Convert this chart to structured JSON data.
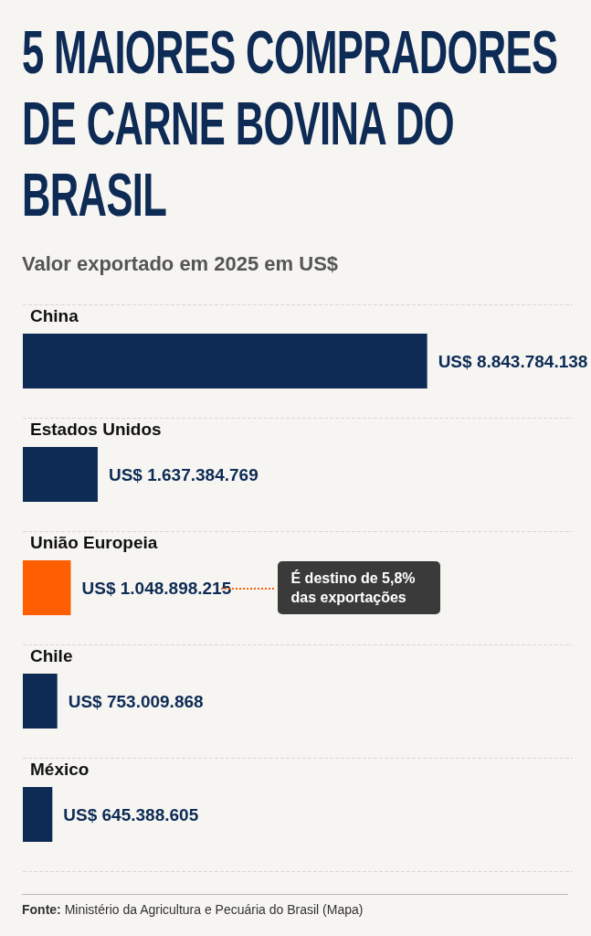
{
  "chart_data": {
    "type": "bar",
    "orientation": "horizontal",
    "title": "5 MAIORES COMPRADORES DE CARNE BOVINA DO BRASIL",
    "subtitle": "Valor exportado em 2025 em US$",
    "categories": [
      "China",
      "Estados Unidos",
      "União Europeia",
      "Chile",
      "México"
    ],
    "values": [
      8843784138,
      1637384769,
      1048898215,
      753009868,
      645388605
    ],
    "colors": [
      "#0d2b55",
      "#0d2b55",
      "#ff5f00",
      "#0d2b55",
      "#0d2b55"
    ],
    "value_labels": [
      "US$ 8.843.784.138",
      "US$ 1.637.384.769",
      "US$ 1.048.898.215",
      "US$ 753.009.868",
      "US$ 645.388.605"
    ],
    "grid": "y",
    "annotations": [
      "É destino de 5,8% das exportações",
      "Fonte: Ministério da Agricultura e Pecuária do Brasil (Mapa)"
    ]
  }
}
